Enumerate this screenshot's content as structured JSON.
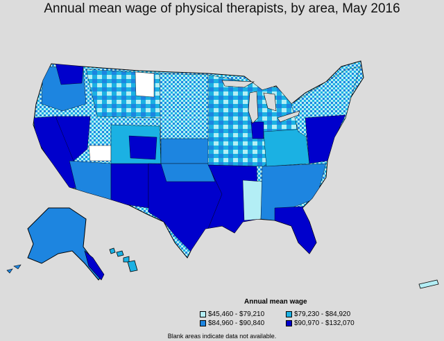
{
  "title": "Annual mean wage of physical therapists, by area, May 2016",
  "legend": {
    "title": "Annual mean wage",
    "items": [
      {
        "label": "$45,460 - $79,210",
        "color": "#b3eef5"
      },
      {
        "label": "$79,230 - $84,920",
        "color": "#1bb1e3"
      },
      {
        "label": "$84,960 - $90,840",
        "color": "#1d85e0"
      },
      {
        "label": "$90,970 - $132,070",
        "color": "#0000cc"
      }
    ]
  },
  "colors": {
    "background": "#dcdcdc",
    "no_data": "#ffffff",
    "border": "#000000"
  },
  "footnote": "Blank areas indicate data not available."
}
